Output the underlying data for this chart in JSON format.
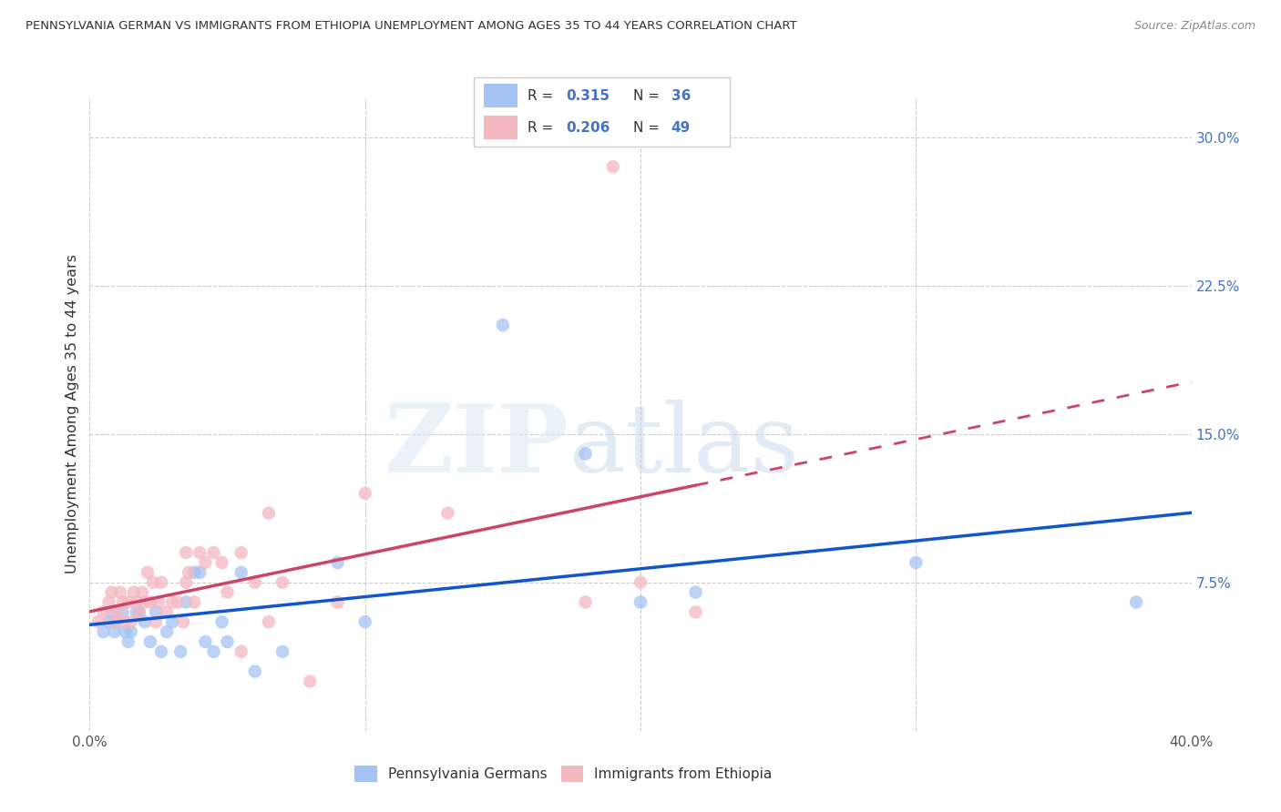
{
  "title": "PENNSYLVANIA GERMAN VS IMMIGRANTS FROM ETHIOPIA UNEMPLOYMENT AMONG AGES 35 TO 44 YEARS CORRELATION CHART",
  "source": "Source: ZipAtlas.com",
  "ylabel": "Unemployment Among Ages 35 to 44 years",
  "xlim": [
    0.0,
    0.4
  ],
  "ylim": [
    0.0,
    0.32
  ],
  "xticks": [
    0.0,
    0.1,
    0.2,
    0.3,
    0.4
  ],
  "yticks": [
    0.0,
    0.075,
    0.15,
    0.225,
    0.3
  ],
  "blue_color": "#a4c2f4",
  "pink_color": "#f4b8c1",
  "blue_line_color": "#1155cc",
  "pink_line_color": "#cc4466",
  "legend_text_color": "#4472c4",
  "blue_label": "Pennsylvania Germans",
  "pink_label": "Immigrants from Ethiopia",
  "blue_R": "0.315",
  "blue_N": "36",
  "pink_R": "0.206",
  "pink_N": "49",
  "blue_scatter_x": [
    0.005,
    0.007,
    0.008,
    0.009,
    0.01,
    0.012,
    0.013,
    0.014,
    0.015,
    0.017,
    0.018,
    0.02,
    0.022,
    0.024,
    0.026,
    0.028,
    0.03,
    0.033,
    0.035,
    0.038,
    0.04,
    0.042,
    0.045,
    0.048,
    0.05,
    0.055,
    0.06,
    0.07,
    0.09,
    0.1,
    0.15,
    0.18,
    0.2,
    0.22,
    0.3,
    0.38
  ],
  "blue_scatter_y": [
    0.05,
    0.055,
    0.06,
    0.05,
    0.055,
    0.06,
    0.05,
    0.045,
    0.05,
    0.06,
    0.06,
    0.055,
    0.045,
    0.06,
    0.04,
    0.05,
    0.055,
    0.04,
    0.065,
    0.08,
    0.08,
    0.045,
    0.04,
    0.055,
    0.045,
    0.08,
    0.03,
    0.04,
    0.085,
    0.055,
    0.205,
    0.14,
    0.065,
    0.07,
    0.085,
    0.065
  ],
  "pink_scatter_x": [
    0.003,
    0.005,
    0.007,
    0.008,
    0.009,
    0.01,
    0.011,
    0.012,
    0.013,
    0.014,
    0.015,
    0.016,
    0.017,
    0.018,
    0.019,
    0.02,
    0.021,
    0.022,
    0.023,
    0.024,
    0.025,
    0.026,
    0.028,
    0.03,
    0.032,
    0.034,
    0.035,
    0.036,
    0.038,
    0.04,
    0.042,
    0.045,
    0.048,
    0.05,
    0.055,
    0.06,
    0.065,
    0.07,
    0.08,
    0.09,
    0.1,
    0.13,
    0.18,
    0.2,
    0.22,
    0.065,
    0.035,
    0.055,
    0.19
  ],
  "pink_scatter_y": [
    0.055,
    0.06,
    0.065,
    0.07,
    0.055,
    0.06,
    0.07,
    0.065,
    0.055,
    0.065,
    0.055,
    0.07,
    0.065,
    0.06,
    0.07,
    0.065,
    0.08,
    0.065,
    0.075,
    0.055,
    0.065,
    0.075,
    0.06,
    0.065,
    0.065,
    0.055,
    0.075,
    0.08,
    0.065,
    0.09,
    0.085,
    0.09,
    0.085,
    0.07,
    0.09,
    0.075,
    0.055,
    0.075,
    0.025,
    0.065,
    0.12,
    0.11,
    0.065,
    0.075,
    0.06,
    0.11,
    0.09,
    0.04,
    0.285
  ]
}
